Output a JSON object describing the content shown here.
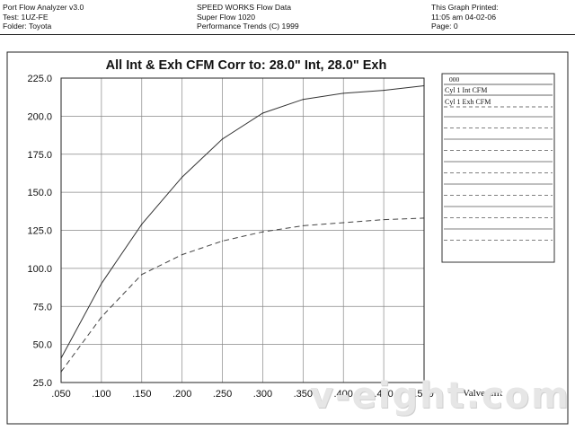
{
  "header": {
    "left": [
      "Port Flow Analyzer v3.0",
      "Test: 1UZ-FE",
      "Folder: Toyota"
    ],
    "center": [
      "SPEED WORKS Flow Data",
      "Super Flow 1020",
      "Performance Trends (C) 1999"
    ],
    "right": [
      "This Graph Printed:",
      "11:05 am 04-02-06",
      "Page: 0"
    ]
  },
  "watermark": "v-eight.com",
  "chart_data": {
    "type": "line",
    "title": "All Int & Exh CFM   Corr to: 28.0\" Int, 28.0\" Exh",
    "xlabel": "Valve Lift",
    "ylabel": "",
    "x": [
      0.05,
      0.1,
      0.15,
      0.2,
      0.25,
      0.3,
      0.35,
      0.4,
      0.45,
      0.5
    ],
    "xlim": [
      0.05,
      0.5
    ],
    "ylim": [
      25,
      225
    ],
    "x_ticks": [
      ".050",
      ".100",
      ".150",
      ".200",
      ".250",
      ".300",
      ".350",
      ".400",
      ".450",
      ".500"
    ],
    "y_ticks": [
      "25.0",
      "50.0",
      "75.0",
      "100.0",
      "125.0",
      "150.0",
      "175.0",
      "200.0",
      "225.0"
    ],
    "grid": true,
    "legend_position": "right",
    "legend_header": "000",
    "series": [
      {
        "name": "Cyl 1 Int CFM",
        "color": "#333333",
        "dash": "solid",
        "values": [
          41,
          90,
          129,
          160,
          185,
          202,
          211,
          215,
          217,
          220
        ]
      },
      {
        "name": "Cyl 1 Exh CFM",
        "color": "#444444",
        "dash": "dashed",
        "values": [
          32,
          68,
          96,
          109,
          118,
          124,
          128,
          130,
          132,
          133
        ]
      }
    ]
  }
}
